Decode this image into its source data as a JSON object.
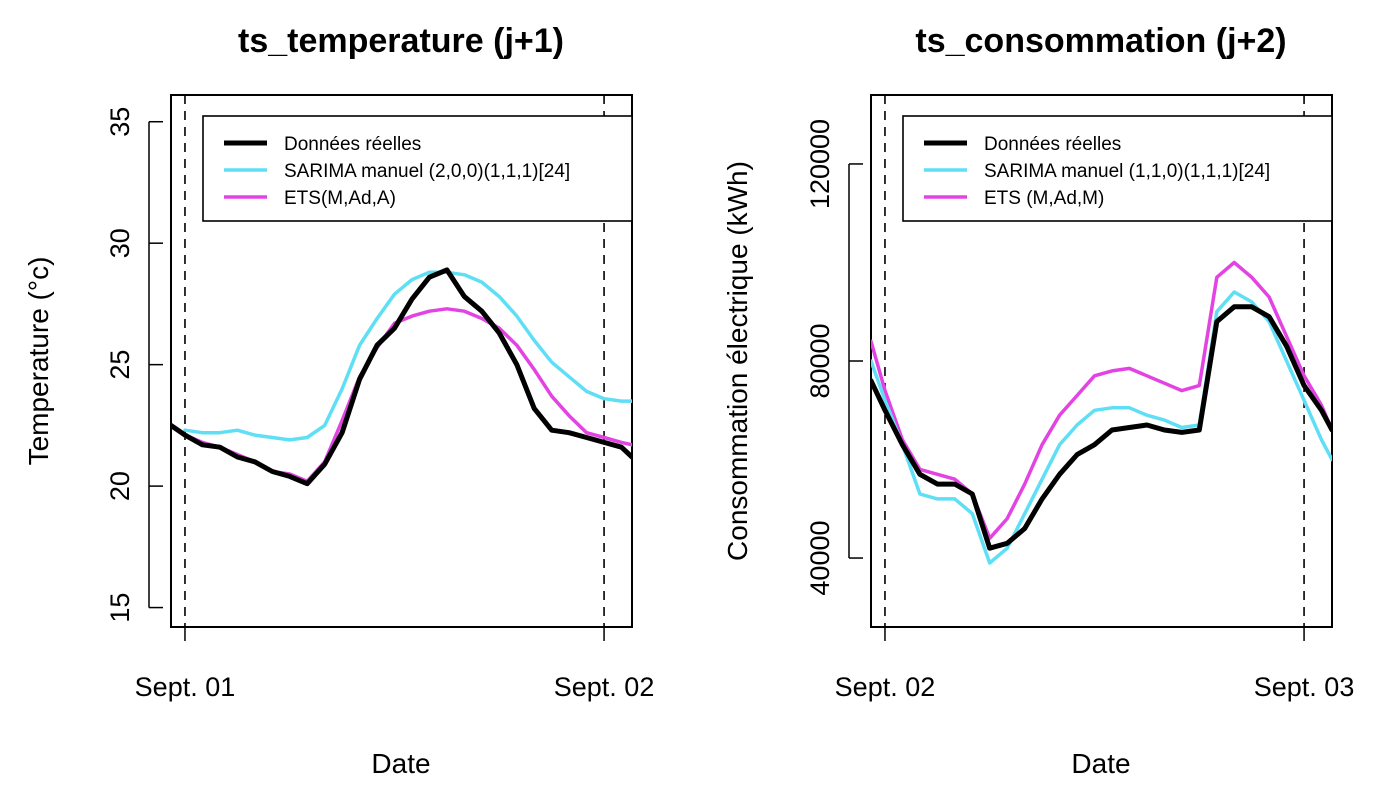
{
  "chart_data": [
    {
      "type": "line",
      "title": "ts_temperature (j+1)",
      "xlabel": "Date",
      "ylabel": "Temperature (°c)",
      "ylim": [
        14.2,
        36.1
      ],
      "xlim": [
        -0.8,
        25.6
      ],
      "x_ticks": [
        {
          "x": 0,
          "label": "Sept. 01"
        },
        {
          "x": 24,
          "label": "Sept. 02"
        }
      ],
      "y_ticks": [
        15,
        20,
        25,
        30,
        35
      ],
      "vlines": [
        0,
        24
      ],
      "legend_position": "top-right",
      "x": [
        -0.8,
        0,
        1,
        2,
        3,
        4,
        5,
        6,
        7,
        8,
        9,
        10,
        11,
        12,
        13,
        14,
        15,
        16,
        17,
        18,
        19,
        20,
        21,
        22,
        23,
        24,
        25,
        25.6
      ],
      "series": [
        {
          "name": "Données réelles",
          "color": "#000000",
          "width": 5,
          "values": [
            22.5,
            22.1,
            21.7,
            21.6,
            21.2,
            21.0,
            20.6,
            20.4,
            20.1,
            20.9,
            22.2,
            24.4,
            25.8,
            26.5,
            27.7,
            28.6,
            28.9,
            27.8,
            27.2,
            26.3,
            25.0,
            23.2,
            22.3,
            22.2,
            22.0,
            21.8,
            21.6,
            21.2
          ]
        },
        {
          "name": "SARIMA manuel (2,0,0)(1,1,1)[24]",
          "color": "#5EDFF5",
          "width": 3.5,
          "values": [
            null,
            22.3,
            22.2,
            22.2,
            22.3,
            22.1,
            22.0,
            21.9,
            22.0,
            22.5,
            24.0,
            25.8,
            26.9,
            27.9,
            28.5,
            28.8,
            28.8,
            28.7,
            28.4,
            27.8,
            27.0,
            26.0,
            25.1,
            24.5,
            23.9,
            23.6,
            23.5,
            23.5
          ]
        },
        {
          "name": "ETS(M,Ad,A)",
          "color": "#E343E3",
          "width": 3.5,
          "values": [
            null,
            22.1,
            21.8,
            21.6,
            21.3,
            21.0,
            20.6,
            20.5,
            20.2,
            21.0,
            22.7,
            24.5,
            25.7,
            26.7,
            27.0,
            27.2,
            27.3,
            27.2,
            26.9,
            26.5,
            25.8,
            24.8,
            23.7,
            22.9,
            22.2,
            22.0,
            21.8,
            21.7
          ]
        }
      ]
    },
    {
      "type": "line",
      "title": "ts_consommation (j+2)",
      "xlabel": "Date",
      "ylabel": "Consommation électrique (kWh)",
      "ylim": [
        26000,
        134000
      ],
      "xlim": [
        -0.8,
        25.6
      ],
      "x_ticks": [
        {
          "x": 0,
          "label": "Sept. 02"
        },
        {
          "x": 24,
          "label": "Sept. 03"
        }
      ],
      "y_ticks": [
        40000,
        80000,
        120000
      ],
      "vlines": [
        0,
        24
      ],
      "legend_position": "top-right",
      "x": [
        -0.8,
        0,
        1,
        2,
        3,
        4,
        5,
        6,
        7,
        8,
        9,
        10,
        11,
        12,
        13,
        14,
        15,
        16,
        17,
        18,
        19,
        20,
        21,
        22,
        23,
        24,
        25,
        25.6
      ],
      "series": [
        {
          "name": "Données réelles",
          "color": "#000000",
          "width": 5,
          "values": [
            76000,
            70000,
            63000,
            57000,
            55000,
            55000,
            53000,
            42000,
            43000,
            46000,
            52000,
            57000,
            61000,
            63000,
            66000,
            66500,
            67000,
            66000,
            65500,
            66000,
            88000,
            91000,
            91000,
            89000,
            83000,
            75000,
            70000,
            66000
          ]
        },
        {
          "name": "SARIMA manuel (1,1,0)(1,1,1)[24]",
          "color": "#5EDFF5",
          "width": 3.5,
          "values": [
            80000,
            72000,
            63000,
            53000,
            52000,
            52000,
            49000,
            39000,
            42000,
            49000,
            56000,
            63000,
            67000,
            70000,
            70500,
            70500,
            69000,
            68000,
            66500,
            67000,
            90000,
            94000,
            92000,
            88000,
            80000,
            72000,
            64000,
            60000
          ]
        },
        {
          "name": "ETS (M,Ad,M)",
          "color": "#E343E3",
          "width": 3.5,
          "values": [
            84000,
            74000,
            64000,
            58000,
            57000,
            56000,
            53000,
            44000,
            48000,
            55000,
            63000,
            69000,
            73000,
            77000,
            78000,
            78500,
            77000,
            75500,
            74000,
            75000,
            97000,
            100000,
            97000,
            93000,
            85000,
            77000,
            71000,
            66000
          ]
        }
      ]
    }
  ]
}
